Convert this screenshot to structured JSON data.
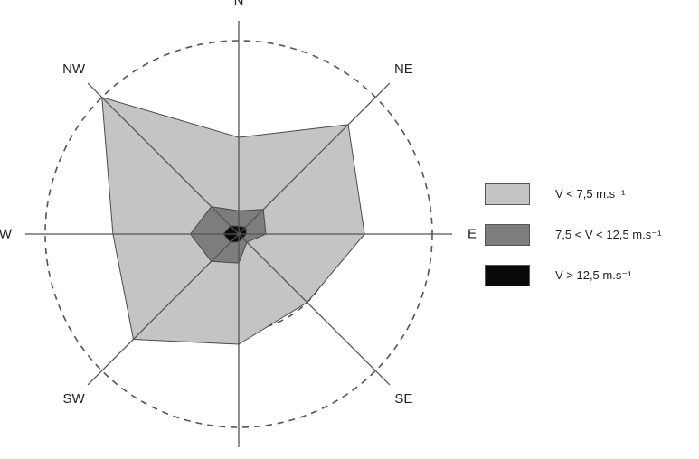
{
  "chart_data": {
    "type": "radar",
    "directions": [
      "N",
      "NE",
      "E",
      "SE",
      "S",
      "SW",
      "W",
      "NW"
    ],
    "rings": [
      0.5,
      1.0
    ],
    "grid": "dashed circles",
    "legend_position": "right",
    "series": [
      {
        "name": "V < 7,5 m.s⁻¹",
        "values": [
          0.5,
          0.8,
          0.65,
          0.5,
          0.57,
          0.77,
          0.65,
          1.0
        ],
        "color": "#c4c4c4"
      },
      {
        "name": "7,5 < V < 12,5 m.s⁻¹",
        "values": [
          0.12,
          0.18,
          0.14,
          0.06,
          0.15,
          0.2,
          0.25,
          0.2
        ],
        "color": "#7d7d7d"
      },
      {
        "name": "V > 12,5 m.s⁻¹",
        "values": [
          0.04,
          0.05,
          0.04,
          0.03,
          0.04,
          0.06,
          0.08,
          0.06
        ],
        "color": "#0a0a0a"
      }
    ]
  }
}
